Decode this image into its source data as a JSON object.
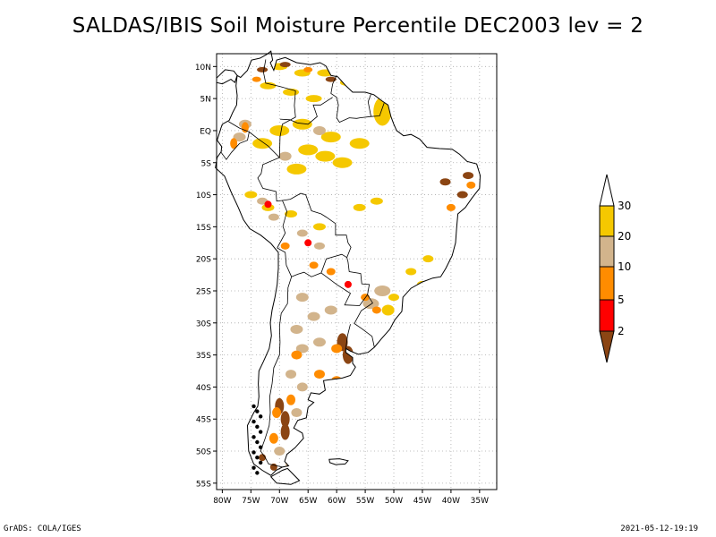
{
  "title": "SALDAS/IBIS Soil Moisture Percentile DEC2003 lev = 2",
  "map": {
    "lon_range": [
      -81,
      -32
    ],
    "lat_range": [
      -56,
      12
    ],
    "lat_ticks": [
      {
        "value": 10,
        "label": "10N"
      },
      {
        "value": 5,
        "label": "5N"
      },
      {
        "value": 0,
        "label": "EQ"
      },
      {
        "value": -5,
        "label": "5S"
      },
      {
        "value": -10,
        "label": "10S"
      },
      {
        "value": -15,
        "label": "15S"
      },
      {
        "value": -20,
        "label": "20S"
      },
      {
        "value": -25,
        "label": "25S"
      },
      {
        "value": -30,
        "label": "30S"
      },
      {
        "value": -35,
        "label": "35S"
      },
      {
        "value": -40,
        "label": "40S"
      },
      {
        "value": -45,
        "label": "45S"
      },
      {
        "value": -50,
        "label": "50S"
      },
      {
        "value": -55,
        "label": "55S"
      }
    ],
    "lon_ticks": [
      {
        "value": -80,
        "label": "80W"
      },
      {
        "value": -75,
        "label": "75W"
      },
      {
        "value": -70,
        "label": "70W"
      },
      {
        "value": -65,
        "label": "65W"
      },
      {
        "value": -60,
        "label": "60W"
      },
      {
        "value": -55,
        "label": "55W"
      },
      {
        "value": -50,
        "label": "50W"
      },
      {
        "value": -45,
        "label": "45W"
      },
      {
        "value": -40,
        "label": "40W"
      },
      {
        "value": -35,
        "label": "35W"
      }
    ],
    "grid": "dotted"
  },
  "legend": {
    "boundaries": [
      "30",
      "20",
      "10",
      "5",
      "2"
    ],
    "colors": {
      "above_30": "#ffffff",
      "20_30": "#f5c800",
      "10_20": "#d2b48c",
      "5_10": "#ff8c00",
      "2_5": "#ff0000",
      "below_2": "#8b4513"
    }
  },
  "footer": {
    "left": "GrADS: COLA/IGES",
    "right": "2021-05-12-19:19"
  }
}
